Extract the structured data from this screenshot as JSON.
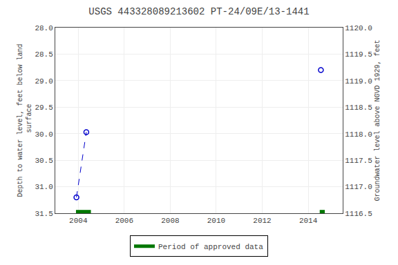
{
  "chart_data": {
    "type": "line",
    "title": "USGS 443328089213602 PT-24/09E/13-1441",
    "y_label": "Depth to water level, feet below land\n surface",
    "y2_label": "Groundwater level above NGVD 1929, feet",
    "xlim": [
      2003.0,
      2015.5
    ],
    "xticks": [
      2004,
      2006,
      2008,
      2010,
      2012,
      2014
    ],
    "ylim": [
      31.5,
      28.0
    ],
    "yticks": [
      {
        "value": 28.0,
        "label": "28.0"
      },
      28.5,
      {
        "value": 29.0,
        "label": "29.0"
      },
      29.5,
      {
        "value": 30.0,
        "label": "30.0"
      },
      30.5,
      {
        "value": 31.0,
        "label": "31.0"
      },
      31.5
    ],
    "y2lim": [
      1116.5,
      1120.0
    ],
    "y2ticks": [
      {
        "value": 1120.0,
        "label": "1120.0"
      },
      1119.5,
      {
        "value": 1119.0,
        "label": "1119.0"
      },
      1118.5,
      {
        "value": 1118.0,
        "label": "1118.0"
      },
      1117.5,
      {
        "value": 1117.0,
        "label": "1117.0"
      },
      1116.5
    ],
    "grid": true,
    "legend": "bottom",
    "series": [
      {
        "type": "line",
        "line_style": "dashed",
        "marker": "open circle",
        "color": "#0000cc",
        "x": [
          2003.92,
          2004.35
        ],
        "values": [
          31.2,
          29.97
        ]
      },
      {
        "type": "scatter",
        "marker": "open circle",
        "color": "#0000cc",
        "x": [
          2014.55
        ],
        "values": [
          28.8
        ]
      },
      {
        "name": "Period of approved data",
        "type": "bar",
        "orientation": "horizontal",
        "color": "#007700",
        "x_start": [
          2003.9,
          2014.5
        ],
        "x_end": [
          2004.55,
          2014.72
        ],
        "values": [
          31.47,
          31.47
        ]
      }
    ]
  }
}
